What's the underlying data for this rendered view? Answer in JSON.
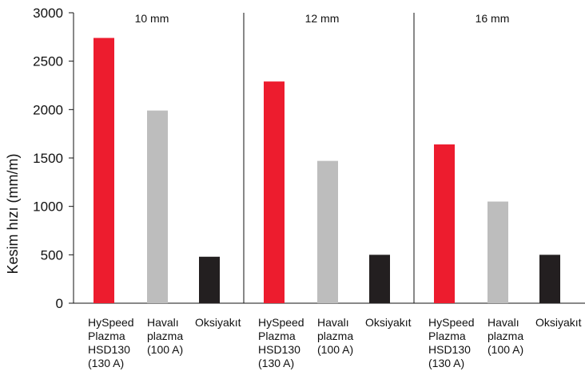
{
  "chart_data": {
    "type": "bar",
    "ylabel": "Kesim hızı (mm/m)",
    "ylim": [
      0,
      3000
    ],
    "yticks": [
      "0",
      "500",
      "1000",
      "1500",
      "2000",
      "2500",
      "3000"
    ],
    "groups": [
      {
        "label": "10 mm",
        "values": [
          2740,
          1990,
          480
        ]
      },
      {
        "label": "12 mm",
        "values": [
          2290,
          1470,
          500
        ]
      },
      {
        "label": "16 mm",
        "values": [
          1640,
          1050,
          500
        ]
      }
    ],
    "categories": [
      [
        "HySpeed",
        "Plazma",
        "HSD130",
        "(130 A)"
      ],
      [
        "Havalı",
        "plazma",
        "(100 A)"
      ],
      [
        "Oksiyakıt"
      ]
    ],
    "colors": [
      "#ed1c2e",
      "#bdbdbd",
      "#231f20"
    ],
    "grid": false,
    "legend": "none"
  }
}
